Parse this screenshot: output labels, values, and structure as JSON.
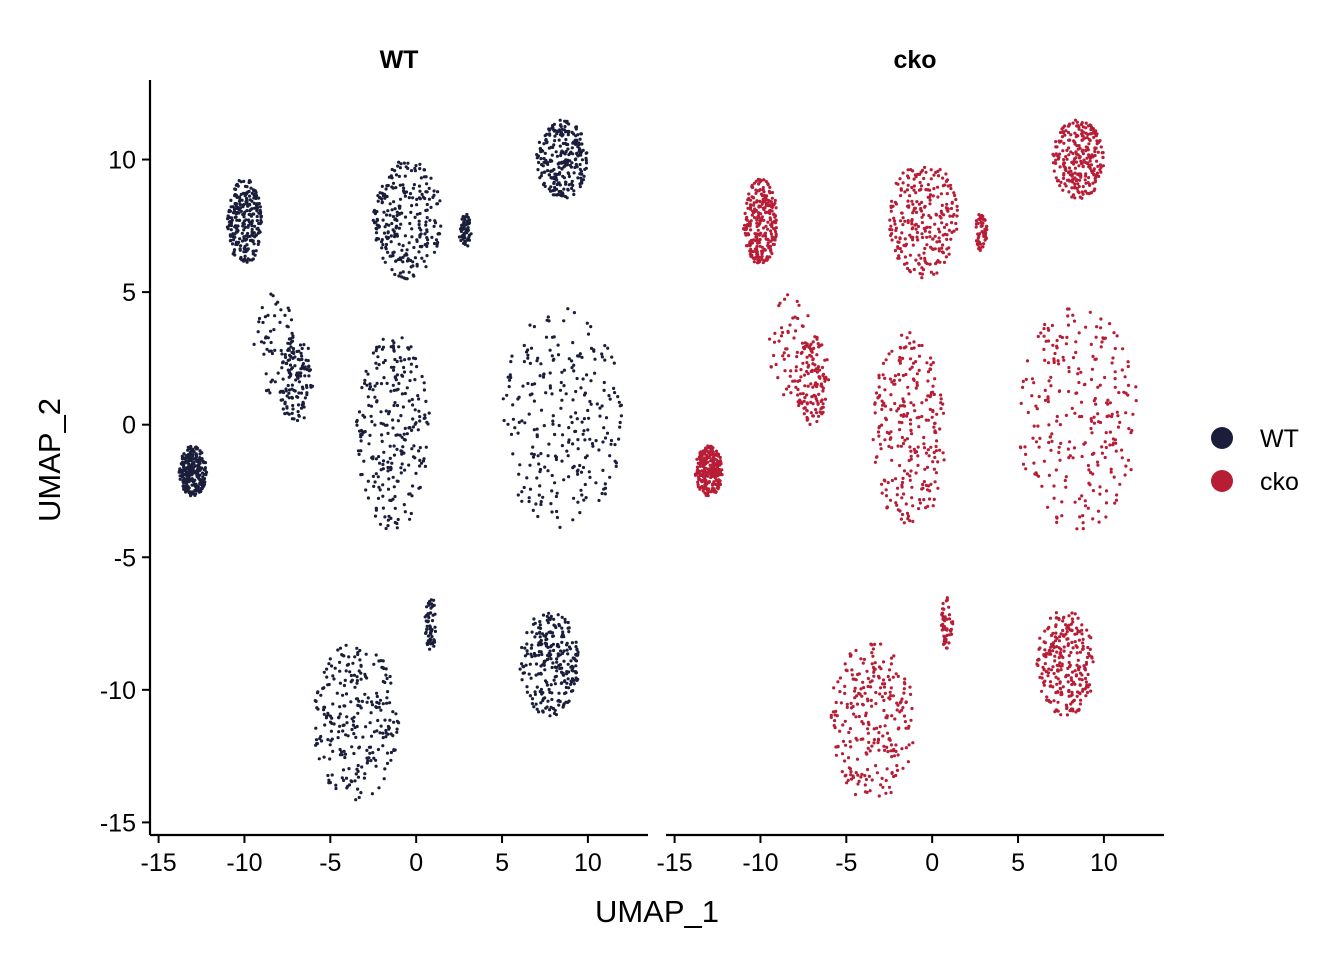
{
  "chart_data": {
    "type": "scatter",
    "title": "",
    "xlabel": "UMAP_1",
    "ylabel": "UMAP_2",
    "xlim": [
      -15.5,
      13.5
    ],
    "ylim": [
      -15.4,
      13.0
    ],
    "x_ticks": [
      -15,
      -10,
      -5,
      0,
      5,
      10
    ],
    "y_ticks": [
      -15,
      -10,
      -5,
      0,
      5,
      10
    ],
    "x_tick_labels": [
      "-15",
      "-10",
      "-5",
      "0",
      "5",
      "10"
    ],
    "y_tick_labels": [
      "-15",
      "-10",
      "-5",
      "0",
      "5",
      "10"
    ],
    "grid": false,
    "legend_position": "right",
    "facets": [
      {
        "title": "WT",
        "group": "WT",
        "color": "#1a1e3b"
      },
      {
        "title": "cko",
        "group": "cko",
        "color": "#b81d36"
      }
    ],
    "legend": [
      {
        "name": "WT",
        "color": "#1a1e3b"
      },
      {
        "name": "cko",
        "color": "#b81d36"
      }
    ],
    "clusters": [
      {
        "x": [
          -11,
          -9
        ],
        "y": [
          6,
          9.3
        ],
        "density": "high"
      },
      {
        "x": [
          -9.5,
          -7
        ],
        "y": [
          1,
          5
        ],
        "density": "low"
      },
      {
        "x": [
          -13.8,
          -12.2
        ],
        "y": [
          -2.7,
          -0.8
        ],
        "density": "high"
      },
      {
        "x": [
          -8,
          -6
        ],
        "y": [
          0,
          3.4
        ],
        "density": "medium"
      },
      {
        "x": [
          -3.5,
          0.8
        ],
        "y": [
          -4,
          3.5
        ],
        "density": "high"
      },
      {
        "x": [
          -2.5,
          1.5
        ],
        "y": [
          5.5,
          10
        ],
        "density": "high"
      },
      {
        "x": [
          5,
          12
        ],
        "y": [
          -4,
          4.5
        ],
        "density": "high"
      },
      {
        "x": [
          7,
          10
        ],
        "y": [
          8.5,
          11.5
        ],
        "density": "high"
      },
      {
        "x": [
          -6,
          -1
        ],
        "y": [
          -14.2,
          -8.2
        ],
        "density": "high"
      },
      {
        "x": [
          6,
          9.5
        ],
        "y": [
          -11,
          -7
        ],
        "density": "high"
      },
      {
        "x": [
          0.5,
          1.2
        ],
        "y": [
          -8.5,
          -6.5
        ],
        "density": "low"
      },
      {
        "x": [
          2.5,
          3.2
        ],
        "y": [
          6.5,
          8
        ],
        "density": "low"
      }
    ]
  }
}
